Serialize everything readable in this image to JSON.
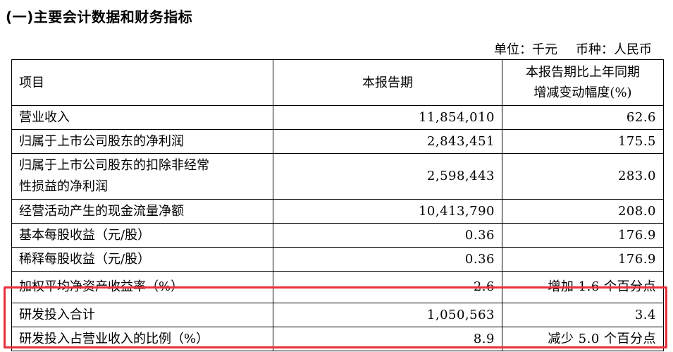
{
  "section_title": "(一)主要会计数据和财务指标",
  "unit_line": {
    "unit": "单位：千元",
    "currency": "币种：人民币"
  },
  "colors": {
    "highlight": "#e8303d",
    "text": "#000000",
    "grid": "#000000"
  },
  "table": {
    "headers": {
      "item": "项目",
      "current": "本报告期",
      "change_line1": "本报告期比上年同期",
      "change_line2": "增减变动幅度(%)"
    },
    "rows": [
      {
        "item": "营业收入",
        "current": "11,854,010",
        "change": "62.6"
      },
      {
        "item": "归属于上市公司股东的净利润",
        "current": "2,843,451",
        "change": "175.5"
      },
      {
        "item_line1": "归属于上市公司股东的扣除非经常",
        "item_line2": "性损益的净利润",
        "current": "2,598,443",
        "change": "283.0"
      },
      {
        "item": "经营活动产生的现金流量净额",
        "current": "10,413,790",
        "change": "208.0"
      },
      {
        "item": "基本每股收益（元/股）",
        "current": "0.36",
        "change": "176.9"
      },
      {
        "item": "稀释每股收益（元/股）",
        "current": "0.36",
        "change": "176.9"
      },
      {
        "item": "加权平均净资产收益率（%）",
        "current": "2.6",
        "change": "增加 1.6 个百分点"
      },
      {
        "item": "研发投入合计",
        "current": "1,050,563",
        "change": "3.4"
      },
      {
        "item": "研发投入占营业收入的比例（%）",
        "current": "8.9",
        "change": "减少 5.0 个百分点"
      }
    ]
  }
}
